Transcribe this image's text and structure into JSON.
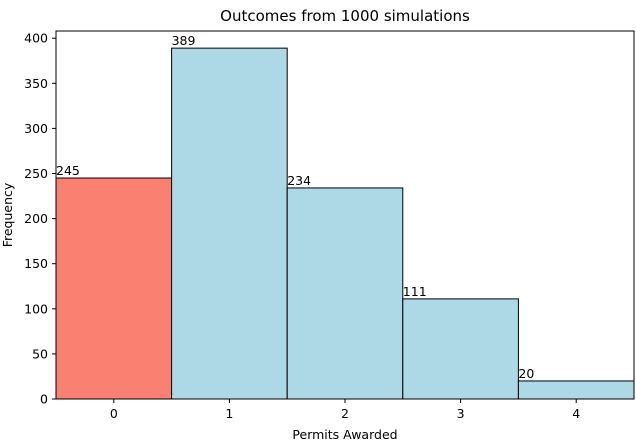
{
  "chart_data": {
    "type": "bar",
    "title": "Outcomes from 1000 simulations",
    "xlabel": "Permits Awarded",
    "ylabel": "Frequency",
    "categories": [
      "0",
      "1",
      "2",
      "3",
      "4"
    ],
    "values": [
      245,
      389,
      234,
      111,
      20
    ],
    "data_labels": [
      "245",
      "389",
      "234",
      "111",
      "20"
    ],
    "bar_colors": [
      "#fa8072",
      "#add8e6",
      "#add8e6",
      "#add8e6",
      "#add8e6"
    ],
    "edge_color": "#000000",
    "xlim": [
      -0.5,
      4.5
    ],
    "ylim": [
      0,
      408
    ],
    "yticks": [
      0,
      50,
      100,
      150,
      200,
      250,
      300,
      350,
      400
    ],
    "grid": false,
    "legend": "none"
  }
}
